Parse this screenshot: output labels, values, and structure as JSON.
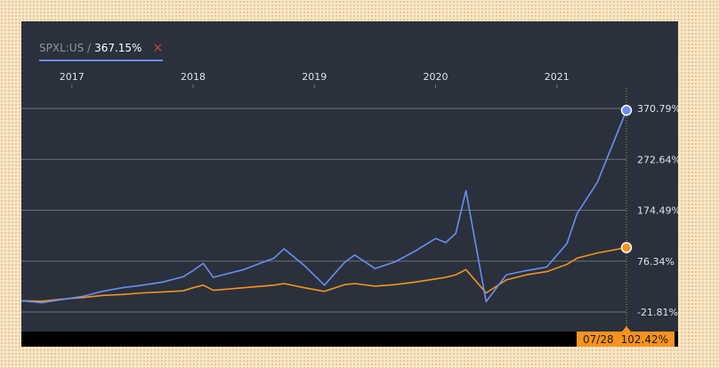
{
  "legend": {
    "ticker": "SPXL:US /",
    "value": "367.15%",
    "close_glyph": "×"
  },
  "footer": {
    "date": "07/28",
    "value": "102.42%"
  },
  "colors": {
    "series_1": "#6b8ef0",
    "series_2": "#f7931e",
    "background": "#2a313c",
    "grid": "#6b7178"
  },
  "chart_data": {
    "type": "line",
    "x_ticks": [
      "2017",
      "2018",
      "2019",
      "2020",
      "2021"
    ],
    "y_ticks": [
      "370.79%",
      "272.64%",
      "174.49%",
      "76.34%",
      "-21.81%"
    ],
    "ylim": [
      -21.81,
      370.79
    ],
    "xlim": [
      "2016-08",
      "2021-07-28"
    ],
    "grid": "horizontal",
    "x": [
      "2016-08",
      "2016-10",
      "2016-12",
      "2017-02",
      "2017-04",
      "2017-06",
      "2017-08",
      "2017-10",
      "2017-12",
      "2018-01",
      "2018-02",
      "2018-03",
      "2018-06",
      "2018-09",
      "2018-10",
      "2018-12",
      "2019-02",
      "2019-04",
      "2019-05",
      "2019-07",
      "2019-09",
      "2019-11",
      "2020-01",
      "2020-02",
      "2020-03",
      "2020-04",
      "2020-06",
      "2020-08",
      "2020-10",
      "2020-12",
      "2021-02",
      "2021-03",
      "2021-05",
      "2021-07-28"
    ],
    "series": [
      {
        "values": [
          0,
          -4,
          2,
          8,
          18,
          25,
          30,
          36,
          46,
          58,
          72,
          45,
          60,
          82,
          100,
          68,
          30,
          74,
          88,
          62,
          75,
          96,
          120,
          112,
          130,
          212,
          -2,
          50,
          58,
          65,
          110,
          168,
          228,
          367.15
        ]
      },
      {
        "values": [
          0,
          -1,
          3,
          6,
          10,
          12,
          15,
          17,
          19,
          25,
          30,
          20,
          25,
          30,
          33,
          25,
          18,
          31,
          33,
          28,
          31,
          36,
          42,
          45,
          50,
          60,
          15,
          40,
          50,
          56,
          70,
          82,
          92,
          102.42
        ]
      }
    ]
  }
}
